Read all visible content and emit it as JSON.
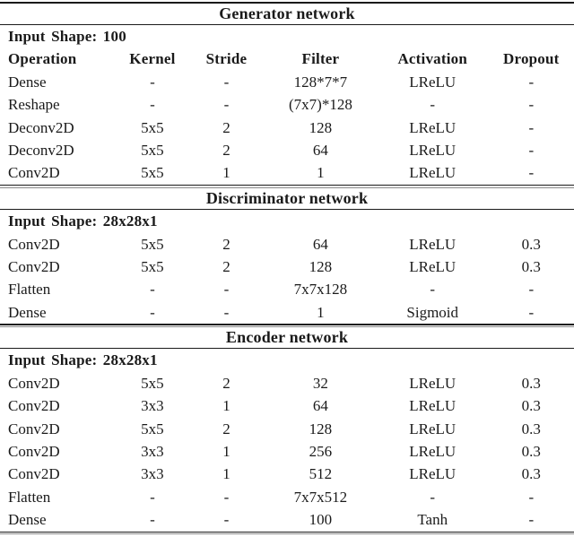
{
  "table": {
    "columns": [
      "Operation",
      "Kernel",
      "Stride",
      "Filter",
      "Activation",
      "Dropout"
    ],
    "sections": [
      {
        "title": "Generator network",
        "input_shape": "Input Shape: 100",
        "rows": [
          [
            "Dense",
            "-",
            "-",
            "128*7*7",
            "LReLU",
            "-"
          ],
          [
            "Reshape",
            "-",
            "-",
            "(7x7)*128",
            "-",
            "-"
          ],
          [
            "Deconv2D",
            "5x5",
            "2",
            "128",
            "LReLU",
            "-"
          ],
          [
            "Deconv2D",
            "5x5",
            "2",
            "64",
            "LReLU",
            "-"
          ],
          [
            "Conv2D",
            "5x5",
            "1",
            "1",
            "LReLU",
            "-"
          ]
        ]
      },
      {
        "title": "Discriminator network",
        "input_shape": "Input Shape: 28x28x1",
        "rows": [
          [
            "Conv2D",
            "5x5",
            "2",
            "64",
            "LReLU",
            "0.3"
          ],
          [
            "Conv2D",
            "5x5",
            "2",
            "128",
            "LReLU",
            "0.3"
          ],
          [
            "Flatten",
            "-",
            "-",
            "7x7x128",
            "-",
            "-"
          ],
          [
            "Dense",
            "-",
            "-",
            "1",
            "Sigmoid",
            "-"
          ]
        ]
      },
      {
        "title": "Encoder network",
        "input_shape": "Input Shape: 28x28x1",
        "rows": [
          [
            "Conv2D",
            "5x5",
            "2",
            "32",
            "LReLU",
            "0.3"
          ],
          [
            "Conv2D",
            "3x3",
            "1",
            "64",
            "LReLU",
            "0.3"
          ],
          [
            "Conv2D",
            "5x5",
            "2",
            "128",
            "LReLU",
            "0.3"
          ],
          [
            "Conv2D",
            "3x3",
            "1",
            "256",
            "LReLU",
            "0.3"
          ],
          [
            "Conv2D",
            "3x3",
            "1",
            "512",
            "LReLU",
            "0.3"
          ],
          [
            "Flatten",
            "-",
            "-",
            "7x7x512",
            "-",
            "-"
          ],
          [
            "Dense",
            "-",
            "-",
            "100",
            "Tanh",
            "-"
          ]
        ]
      }
    ]
  }
}
